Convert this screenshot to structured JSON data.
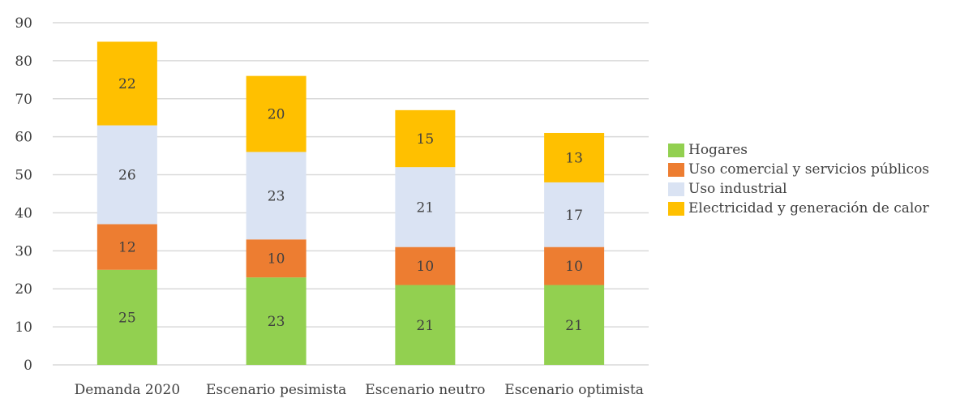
{
  "chart_data": {
    "type": "bar",
    "stacked": true,
    "categories": [
      "Demanda 2020",
      "Escenario pesimista",
      "Escenario neutro",
      "Escenario optimista"
    ],
    "series": [
      {
        "name": "Hogares",
        "values": [
          25,
          23,
          21,
          21
        ],
        "color": "#92d050"
      },
      {
        "name": "Uso comercial y servicios públicos",
        "values": [
          12,
          10,
          10,
          10
        ],
        "color": "#ed7d31"
      },
      {
        "name": "Uso industrial",
        "values": [
          26,
          23,
          21,
          17
        ],
        "color": "#dae3f3"
      },
      {
        "name": "Electricidad y generación de calor",
        "values": [
          22,
          20,
          15,
          13
        ],
        "color": "#ffc000"
      }
    ],
    "data_labels": {
      "Hogares": [
        "25",
        "23",
        "21",
        "21"
      ],
      "Uso comercial y servicios públicos": [
        "12",
        "10",
        "10",
        "10"
      ],
      "Uso industrial": [
        "26",
        "23",
        "21",
        "17"
      ],
      "Electricidad y generación de calor": [
        "22",
        "20",
        "15",
        "13"
      ]
    },
    "y_ticks": [
      "0",
      "10",
      "20",
      "30",
      "40",
      "50",
      "60",
      "70",
      "80",
      "90"
    ],
    "ylim": [
      0,
      90
    ],
    "grid": true,
    "legend_position": "right",
    "title": "",
    "xlabel": "",
    "ylabel": ""
  }
}
